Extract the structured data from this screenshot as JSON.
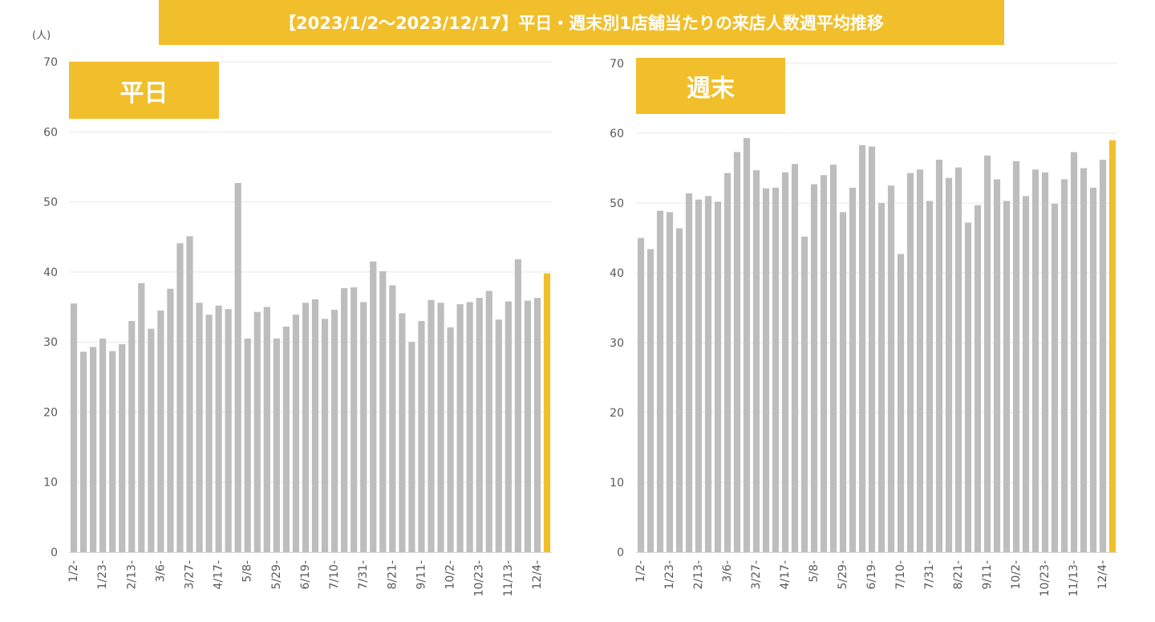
{
  "title": "【2023/1/2～2023/12/17】平日・週末別1店舗当たりの来店人数週平均推移",
  "unit": "(人)",
  "colors": {
    "bar": "#BDBDBD",
    "highlight": "#F0BF2B",
    "grid": "#E8E8E8",
    "axis_text": "#595959"
  },
  "chart_data": [
    {
      "type": "bar",
      "title": "平日",
      "ylabel": "(人)",
      "ylim": [
        0,
        70
      ],
      "yticks": [
        "0",
        "10",
        "20",
        "30",
        "40",
        "50",
        "60",
        "70"
      ],
      "xtick_labels": [
        "1/2-",
        "1/23-",
        "2/13-",
        "3/6-",
        "3/27-",
        "4/17-",
        "5/8-",
        "5/29-",
        "6/19-",
        "7/10-",
        "7/31-",
        "8/21-",
        "9/11-",
        "10/2-",
        "10/23-",
        "11/13-",
        "12/4-"
      ],
      "values": [
        35.5,
        28.6,
        29.3,
        30.5,
        28.7,
        29.7,
        33.0,
        38.4,
        31.9,
        34.5,
        37.6,
        44.1,
        45.1,
        35.6,
        33.9,
        35.2,
        34.7,
        52.7,
        30.5,
        34.3,
        35.0,
        30.5,
        32.2,
        33.9,
        35.6,
        36.1,
        33.3,
        34.6,
        37.7,
        37.8,
        35.7,
        41.5,
        40.1,
        38.1,
        34.1,
        30.0,
        33.0,
        36.0,
        35.6,
        32.1,
        35.4,
        35.7,
        36.3,
        37.3,
        33.2,
        35.8,
        41.8,
        35.9,
        36.3,
        39.8
      ],
      "highlight_last": true,
      "grid": true
    },
    {
      "type": "bar",
      "title": "週末",
      "ylim": [
        0,
        70
      ],
      "yticks": [
        "0",
        "10",
        "20",
        "30",
        "40",
        "50",
        "60",
        "70"
      ],
      "xtick_labels": [
        "1/2-",
        "1/23-",
        "2/13-",
        "3/6-",
        "3/27-",
        "4/17-",
        "5/8-",
        "5/29-",
        "6/19-",
        "7/10-",
        "7/31-",
        "8/21-",
        "9/11-",
        "10/2-",
        "10/23-",
        "11/13-",
        "12/4-"
      ],
      "values": [
        45.0,
        43.4,
        48.9,
        48.7,
        46.4,
        51.4,
        50.5,
        51.0,
        50.2,
        54.3,
        57.3,
        59.3,
        54.7,
        52.1,
        52.2,
        54.4,
        55.6,
        45.2,
        52.7,
        54.0,
        55.5,
        48.7,
        52.2,
        58.3,
        58.1,
        50.0,
        52.5,
        42.7,
        54.3,
        54.8,
        50.3,
        56.2,
        53.6,
        55.1,
        47.2,
        49.7,
        56.8,
        53.4,
        50.3,
        56.0,
        51.0,
        54.8,
        54.4,
        49.9,
        53.4,
        57.3,
        55.0,
        52.2,
        56.2,
        59.0
      ],
      "highlight_last": true,
      "grid": true
    }
  ]
}
